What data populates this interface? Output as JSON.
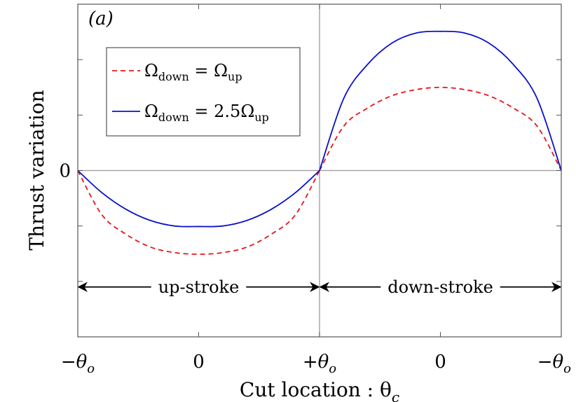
{
  "chart_data": {
    "type": "line",
    "panel_label": "(a)",
    "xlabel": "Cut location : θ_c",
    "xlabel_parts": {
      "main": "Cut location : θ",
      "sub": "c"
    },
    "ylabel": "Thrust variation",
    "x_ticks": [
      {
        "value": 0,
        "label": "−θ",
        "sub": "o"
      },
      {
        "value": 0.25,
        "label": "0",
        "sub": ""
      },
      {
        "value": 0.5,
        "label": "+θ",
        "sub": "o"
      },
      {
        "value": 0.75,
        "label": "0",
        "sub": ""
      },
      {
        "value": 1,
        "label": "−θ",
        "sub": "o"
      }
    ],
    "y_ticks": [
      {
        "value": 0,
        "label": "0"
      }
    ],
    "xlim": [
      0,
      1
    ],
    "ylim": [
      -3,
      3
    ],
    "y_minor_ticks": [
      -2,
      -1,
      1,
      2
    ],
    "x": [
      0,
      0.05,
      0.1,
      0.15,
      0.2,
      0.25,
      0.3,
      0.35,
      0.4,
      0.45,
      0.5,
      0.55,
      0.6,
      0.65,
      0.7,
      0.75,
      0.8,
      0.85,
      0.9,
      0.95,
      1
    ],
    "series": [
      {
        "name": "Ω_down = Ω_up",
        "legend_parts": {
          "l": "Ω",
          "lsub": "down",
          "mid": " = Ω",
          "rsub": "up"
        },
        "color": "#e8141b",
        "dash": "dashed",
        "values": [
          0,
          -0.8,
          -1.15,
          -1.38,
          -1.48,
          -1.51,
          -1.48,
          -1.38,
          -1.15,
          -0.8,
          0,
          0.8,
          1.13,
          1.35,
          1.46,
          1.5,
          1.46,
          1.35,
          1.13,
          0.8,
          0
        ]
      },
      {
        "name": "Ω_down = 2.5Ω_up",
        "legend_parts": {
          "l": "Ω",
          "lsub": "down",
          "mid": " = 2.5Ω",
          "rsub": "up"
        },
        "color": "#0a12c8",
        "dash": "solid",
        "values": [
          0,
          -0.4,
          -0.7,
          -0.9,
          -1.0,
          -1.01,
          -1.0,
          -0.9,
          -0.7,
          -0.4,
          0,
          1.3,
          1.92,
          2.3,
          2.48,
          2.51,
          2.48,
          2.3,
          1.92,
          1.3,
          0
        ]
      }
    ],
    "annotations": [
      {
        "text": "up-stroke",
        "x_from": 0,
        "x_to": 0.5,
        "y": -2.1
      },
      {
        "text": "down-stroke",
        "x_from": 0.5,
        "x_to": 1,
        "y": -2.1
      }
    ],
    "reference_lines": {
      "x": 0.5,
      "y": 0
    },
    "legend_position": "top-left",
    "grid": false
  }
}
